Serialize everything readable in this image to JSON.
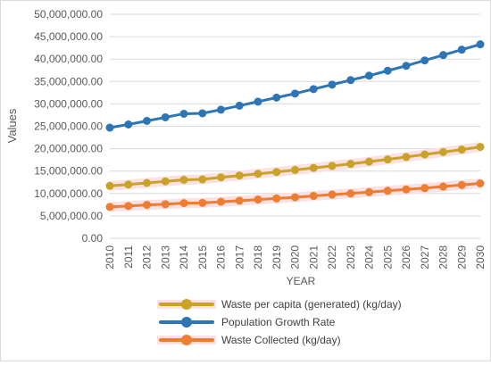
{
  "chart_data": {
    "type": "line",
    "title": "",
    "xlabel": "YEAR",
    "ylabel": "Values",
    "ylim": [
      0,
      50000000
    ],
    "ytick_step": 5000000,
    "ytick_labels": [
      "0.00",
      "5,000,000.00",
      "10,000,000.00",
      "15,000,000.00",
      "20,000,000.00",
      "25,000,000.00",
      "30,000,000.00",
      "35,000,000.00",
      "40,000,000.00",
      "45,000,000.00",
      "50,000,000.00"
    ],
    "grid": true,
    "legend_position": "bottom",
    "x": [
      "2010",
      "2011",
      "2012",
      "2013",
      "2014",
      "2015",
      "2016",
      "2017",
      "2018",
      "2019",
      "2020",
      "2021",
      "2022",
      "2023",
      "2024",
      "2025",
      "2026",
      "2027",
      "2028",
      "2029",
      "2030"
    ],
    "series": [
      {
        "name": "Waste per capita (generated) (kg/day)",
        "color": "#C9A227",
        "band_color": "#FBE0E4",
        "values": [
          11700000,
          12000000,
          12350000,
          12700000,
          13050000,
          13150000,
          13600000,
          14000000,
          14400000,
          14800000,
          15250000,
          15700000,
          16150000,
          16600000,
          17100000,
          17600000,
          18150000,
          18700000,
          19250000,
          19800000,
          20400000
        ]
      },
      {
        "name": "Population Growth Rate",
        "color": "#2E75B6",
        "band_color": "#FBE0E4",
        "values": [
          24700000,
          25400000,
          26200000,
          27000000,
          27800000,
          27900000,
          28700000,
          29600000,
          30500000,
          31400000,
          32300000,
          33300000,
          34300000,
          35300000,
          36300000,
          37400000,
          38500000,
          39700000,
          40900000,
          42100000,
          43300000
        ]
      },
      {
        "name": "Waste Collected (kg/day)",
        "color": "#ED7D31",
        "band_color": "#FBE0E4",
        "values": [
          7000000,
          7200000,
          7450000,
          7600000,
          7850000,
          7900000,
          8150000,
          8400000,
          8650000,
          8900000,
          9150000,
          9450000,
          9750000,
          10000000,
          10300000,
          10600000,
          10900000,
          11200000,
          11550000,
          11900000,
          12250000
        ]
      }
    ]
  }
}
